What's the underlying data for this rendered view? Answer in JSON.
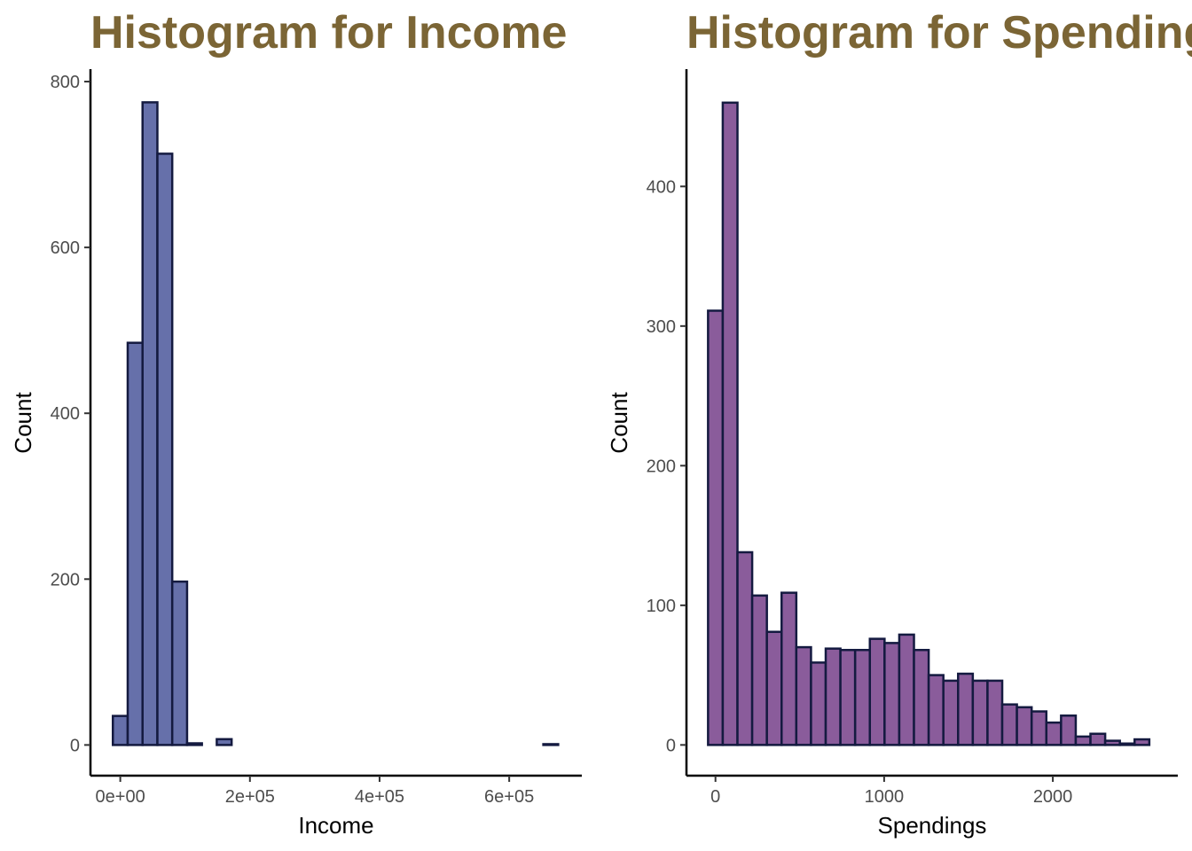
{
  "chart_data": [
    {
      "type": "bar",
      "title": "Histogram for Income",
      "xlabel": "Income",
      "ylabel": "Count",
      "fill_color": "#6670aa",
      "edge_color": "#141a40",
      "title_color": "#7b6535",
      "xlim": [
        -46000,
        712000
      ],
      "ylim": [
        -37,
        815
      ],
      "xticks": [
        {
          "value": 0,
          "label": "0e+00"
        },
        {
          "value": 200000,
          "label": "2e+05"
        },
        {
          "value": 400000,
          "label": "4e+05"
        },
        {
          "value": 600000,
          "label": "6e+05"
        }
      ],
      "yticks": [
        {
          "value": 0,
          "label": "0"
        },
        {
          "value": 200,
          "label": "200"
        },
        {
          "value": 400,
          "label": "400"
        },
        {
          "value": 600,
          "label": "600"
        },
        {
          "value": 800,
          "label": "800"
        }
      ],
      "bin_start": -11450,
      "bin_width": 22900,
      "values": [
        35,
        485,
        775,
        713,
        197,
        2,
        0,
        7,
        0,
        0,
        0,
        0,
        0,
        0,
        0,
        0,
        0,
        0,
        0,
        0,
        0,
        0,
        0,
        0,
        0,
        0,
        0,
        0,
        0,
        1
      ]
    },
    {
      "type": "bar",
      "title": "Histogram for Spendings",
      "xlabel": "Spendings",
      "ylabel": "Count",
      "fill_color": "#8a5c9b",
      "edge_color": "#141a40",
      "title_color": "#7b6535",
      "xlim": [
        -172,
        2741
      ],
      "ylim": [
        -22,
        484
      ],
      "xticks": [
        {
          "value": 0,
          "label": "0"
        },
        {
          "value": 1000,
          "label": "1000"
        },
        {
          "value": 2000,
          "label": "2000"
        }
      ],
      "yticks": [
        {
          "value": 0,
          "label": "0"
        },
        {
          "value": 100,
          "label": "100"
        },
        {
          "value": 200,
          "label": "200"
        },
        {
          "value": 300,
          "label": "300"
        },
        {
          "value": 400,
          "label": "400"
        }
      ],
      "bin_start": -44,
      "bin_width": 87.2,
      "values": [
        311,
        460,
        138,
        107,
        81,
        109,
        70,
        59,
        69,
        68,
        68,
        76,
        73,
        79,
        68,
        50,
        46,
        51,
        46,
        46,
        29,
        27,
        24,
        16,
        21,
        6,
        8,
        3,
        1,
        4
      ]
    }
  ]
}
